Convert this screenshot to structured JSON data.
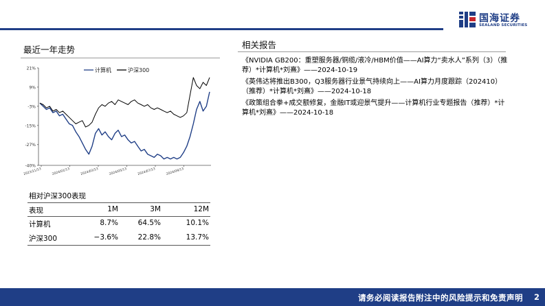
{
  "header": {
    "logo_cn": "国海证券",
    "logo_en": "SEALAND SECURITIES",
    "brand_color": "#1f3e86",
    "logo_icon": "sealand-logo-icon"
  },
  "left": {
    "title": "最近一年走势",
    "performance_title": "相对沪深300表现",
    "table": {
      "headers": [
        "表现",
        "1M",
        "3M",
        "12M"
      ],
      "rows": [
        [
          "计算机",
          "8.7%",
          "64.5%",
          "10.1%"
        ],
        [
          "沪深300",
          "−3.6%",
          "22.8%",
          "13.7%"
        ]
      ]
    }
  },
  "right": {
    "title": "相关报告",
    "reports": [
      "《NVIDIA GB200：重塑服务器/铜缆/液冷/HBM价值——AI算力“卖水人”系列（3）（推荐）*计算机*刘熹》——2024-10-19",
      "《英伟达将推出B300，Q3服务器行业景气持续向上——AI算力月度跟踪（202410）（推荐）*计算机*刘熹》——2024-10-18",
      "《政策组合拳+成交额修复，金融IT或迎景气提升——计算机行业专题报告（推荐）*计算机*刘熹》——2024-10-18"
    ]
  },
  "chart_data": {
    "type": "line",
    "title": "",
    "xlabel": "",
    "ylabel": "",
    "y_ticks": [
      "21%",
      "9%",
      "-3%",
      "-15%",
      "-27%",
      "-40%"
    ],
    "y_tick_values": [
      21,
      9,
      -3,
      -15,
      -27,
      -40
    ],
    "ylim": [
      -40,
      21
    ],
    "x_ticks": [
      "2023/11/13",
      "2024/01/13",
      "2024/03/13",
      "2024/05/13",
      "2024/07/13",
      "2024/09/13"
    ],
    "grid": false,
    "legend_position": "top-center",
    "series": [
      {
        "name": "计算机",
        "color": "#1f3e86",
        "values": [
          -1,
          -3,
          -5,
          -4,
          -7,
          -6,
          -9,
          -8,
          -11,
          -14,
          -15,
          -19,
          -22,
          -26,
          -30,
          -33,
          -28,
          -20,
          -17,
          -21,
          -19,
          -22,
          -24,
          -20,
          -18,
          -22,
          -21,
          -24,
          -26,
          -25,
          -28,
          -31,
          -30,
          -33,
          -34,
          -35,
          -33,
          -34,
          -36,
          -35,
          -36,
          -35,
          -36,
          -35,
          -32,
          -28,
          -22,
          -14,
          -5,
          0,
          -6,
          -3,
          6
        ]
      },
      {
        "name": "沪深300",
        "color": "#000000",
        "values": [
          -1,
          -2,
          -4,
          -3,
          -6,
          -5,
          -7,
          -6,
          -8,
          -10,
          -12,
          -14,
          -13,
          -12,
          -16,
          -15,
          -13,
          -8,
          -4,
          -2,
          -3,
          -1,
          0,
          -2,
          1,
          0,
          -1,
          -2,
          0,
          1,
          -1,
          -2,
          -3,
          -2,
          -4,
          -5,
          -4,
          -5,
          -6,
          -7,
          -6,
          -8,
          -9,
          -10,
          -9,
          -7,
          4,
          15,
          10,
          8,
          12,
          10,
          15
        ]
      }
    ]
  },
  "footer": {
    "disclaimer": "请务必阅读报告附注中的风险提示和免责声明",
    "page_number": "2"
  }
}
